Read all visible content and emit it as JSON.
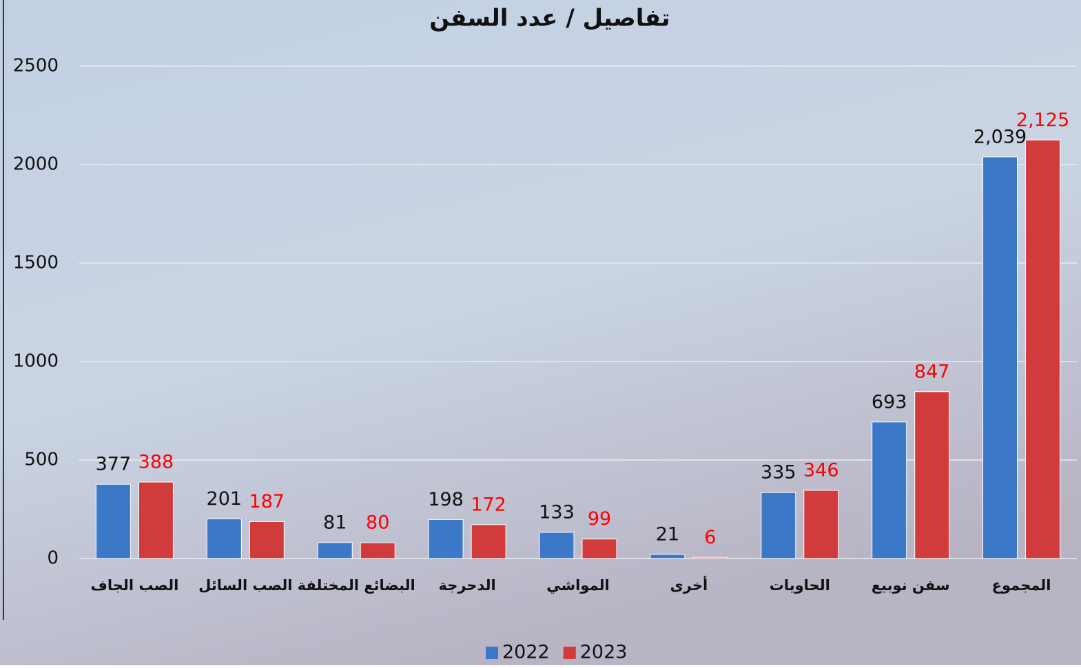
{
  "chart_data": {
    "type": "bar",
    "title": "تفاصيل / عدد السفن",
    "categories": [
      "الصب الجاف",
      "الصب السائل",
      "البضائع المختلفة",
      "الدحرجة",
      "المواشي",
      "أخرى",
      "الحاويات",
      "سفن نوبيع",
      "المجموع"
    ],
    "series": [
      {
        "name": "2022",
        "color": "#3b78c8",
        "value_label_color": "#111111",
        "values": [
          377,
          201,
          81,
          198,
          133,
          21,
          335,
          693,
          2039
        ],
        "value_labels": [
          "377",
          "201",
          "81",
          "198",
          "133",
          "21",
          "335",
          "693",
          "2,039"
        ]
      },
      {
        "name": "2023",
        "color": "#d23b3b",
        "value_label_color": "#ff0000",
        "values": [
          388,
          187,
          80,
          172,
          99,
          6,
          346,
          847,
          2125
        ],
        "value_labels": [
          "388",
          "187",
          "80",
          "172",
          "99",
          "6",
          "346",
          "847",
          "2,125"
        ]
      }
    ],
    "ylim": [
      0,
      2500
    ],
    "yticks": [
      0,
      500,
      1000,
      1500,
      2000,
      2500
    ],
    "grid": true,
    "legend": "bottom"
  }
}
